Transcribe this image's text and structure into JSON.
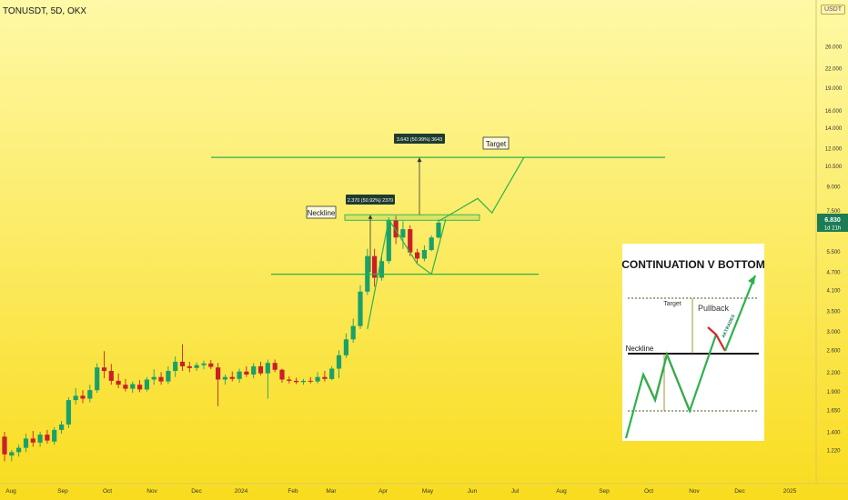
{
  "header": {
    "symbol": "TONUSDT, 5D, OKX",
    "currency_badge": "USDT"
  },
  "price_labels": {
    "current_price": "6.830",
    "countdown": "1d 21h"
  },
  "colors": {
    "bg_top": "#fef9a6",
    "bg_bottom": "#f9dc1e",
    "bull": "#1aa06a",
    "bear": "#c8202a",
    "line": "#2bb24c",
    "current_badge": "#1c7c54"
  },
  "chart_data": {
    "type": "candlestick",
    "title": "TONUSDT, 5D, OKX",
    "y_scale": "log",
    "ylim": [
      1.1,
      30
    ],
    "y_ticks": [
      26.0,
      22.0,
      19.0,
      16.0,
      14.0,
      12.0,
      10.5,
      9.0,
      7.5,
      5.5,
      4.7,
      4.1,
      3.5,
      3.0,
      2.6,
      2.2,
      1.9,
      1.65,
      1.4,
      1.22
    ],
    "y_tick_labels": [
      "26.000",
      "22.000",
      "19.000",
      "16.000",
      "14.000",
      "12.000",
      "10.500",
      "9.000",
      "7.500",
      "5.500",
      "4.700",
      "4.100",
      "3.500",
      "3.000",
      "2.600",
      "2.200",
      "1.900",
      "1.650",
      "1.400",
      "1.220"
    ],
    "x_ticks": [
      "Aug",
      "Sep",
      "Oct",
      "Nov",
      "Dec",
      "2024",
      "Feb",
      "Mar",
      "Apr",
      "May",
      "Jun",
      "Jul",
      "Aug",
      "Sep",
      "Oct",
      "Nov",
      "Dec",
      "2025"
    ],
    "ohlc": [
      [
        1.35,
        1.4,
        1.12,
        1.18
      ],
      [
        1.17,
        1.22,
        1.12,
        1.2
      ],
      [
        1.2,
        1.27,
        1.16,
        1.24
      ],
      [
        1.24,
        1.38,
        1.2,
        1.33
      ],
      [
        1.33,
        1.41,
        1.25,
        1.29
      ],
      [
        1.29,
        1.4,
        1.25,
        1.37
      ],
      [
        1.37,
        1.42,
        1.28,
        1.31
      ],
      [
        1.3,
        1.45,
        1.27,
        1.42
      ],
      [
        1.42,
        1.52,
        1.38,
        1.48
      ],
      [
        1.48,
        1.82,
        1.44,
        1.78
      ],
      [
        1.78,
        1.95,
        1.72,
        1.84
      ],
      [
        1.84,
        1.92,
        1.74,
        1.8
      ],
      [
        1.8,
        2.0,
        1.75,
        1.92
      ],
      [
        1.92,
        2.35,
        1.88,
        2.28
      ],
      [
        2.28,
        2.58,
        2.1,
        2.22
      ],
      [
        2.22,
        2.34,
        2.0,
        2.06
      ],
      [
        2.06,
        2.18,
        1.95,
        2.0
      ],
      [
        2.0,
        2.09,
        1.9,
        1.94
      ],
      [
        1.94,
        2.05,
        1.88,
        2.01
      ],
      [
        2.0,
        2.07,
        1.89,
        1.93
      ],
      [
        1.93,
        2.12,
        1.9,
        2.08
      ],
      [
        2.08,
        2.25,
        2.0,
        2.12
      ],
      [
        2.12,
        2.2,
        2.0,
        2.05
      ],
      [
        2.05,
        2.3,
        2.01,
        2.22
      ],
      [
        2.22,
        2.48,
        2.12,
        2.38
      ],
      [
        2.38,
        2.72,
        2.22,
        2.3
      ],
      [
        2.3,
        2.38,
        2.2,
        2.27
      ],
      [
        2.27,
        2.37,
        2.22,
        2.32
      ],
      [
        2.32,
        2.4,
        2.25,
        2.35
      ],
      [
        2.35,
        2.41,
        2.25,
        2.29
      ],
      [
        2.28,
        2.36,
        1.7,
        2.08
      ],
      [
        2.08,
        2.16,
        2.0,
        2.12
      ],
      [
        2.12,
        2.21,
        2.05,
        2.09
      ],
      [
        2.09,
        2.26,
        2.03,
        2.21
      ],
      [
        2.21,
        2.3,
        2.12,
        2.16
      ],
      [
        2.16,
        2.36,
        2.1,
        2.3
      ],
      [
        2.3,
        2.38,
        2.15,
        2.18
      ],
      [
        2.18,
        2.42,
        1.8,
        2.36
      ],
      [
        2.36,
        2.42,
        2.2,
        2.24
      ],
      [
        2.24,
        2.26,
        2.03,
        2.08
      ],
      [
        2.08,
        2.13,
        2.02,
        2.06
      ],
      [
        2.06,
        2.11,
        2.01,
        2.04
      ],
      [
        2.04,
        2.09,
        2.0,
        2.06
      ],
      [
        2.06,
        2.12,
        2.02,
        2.05
      ],
      [
        2.05,
        2.2,
        2.02,
        2.12
      ],
      [
        2.12,
        2.22,
        2.05,
        2.09
      ],
      [
        2.09,
        2.3,
        2.07,
        2.26
      ],
      [
        2.26,
        2.6,
        2.1,
        2.5
      ],
      [
        2.5,
        2.95,
        2.45,
        2.82
      ],
      [
        2.82,
        3.3,
        2.75,
        3.12
      ],
      [
        3.12,
        4.25,
        3.05,
        4.05
      ],
      [
        4.05,
        5.6,
        3.95,
        5.3
      ],
      [
        5.3,
        5.6,
        4.2,
        4.5
      ],
      [
        4.5,
        5.3,
        4.4,
        5.1
      ],
      [
        5.1,
        7.1,
        5.0,
        6.95
      ],
      [
        6.95,
        7.2,
        5.8,
        6.1
      ],
      [
        6.1,
        6.9,
        5.6,
        6.5
      ],
      [
        6.5,
        6.7,
        5.3,
        5.45
      ],
      [
        5.45,
        5.6,
        5.0,
        5.2
      ],
      [
        5.2,
        5.75,
        5.1,
        5.55
      ],
      [
        5.55,
        6.2,
        5.5,
        6.1
      ],
      [
        6.1,
        7.0,
        6.05,
        6.83
      ]
    ],
    "annotations": {
      "neckline_label": "Neckline",
      "target_label": "Target",
      "measure_small": "2.370 (50.92%) 2370",
      "measure_large": "3.643 (50.99%) 3643"
    },
    "levels": {
      "target": 11.2,
      "neckline_low": 6.95,
      "neckline_high": 7.25,
      "v_bottom": 4.62
    },
    "projection": [
      {
        "i": 61,
        "price": 6.9
      },
      {
        "i": 66.5,
        "price": 8.2
      },
      {
        "i": 68.5,
        "price": 7.35
      },
      {
        "i": 73,
        "price": 11.2
      }
    ]
  },
  "inset": {
    "title": "CONTINUATION V BOTTOM",
    "target_label": "Target",
    "pullback_label": "Pullback",
    "neckline_label": "Neckline",
    "brand_text": "AKTRADES"
  }
}
